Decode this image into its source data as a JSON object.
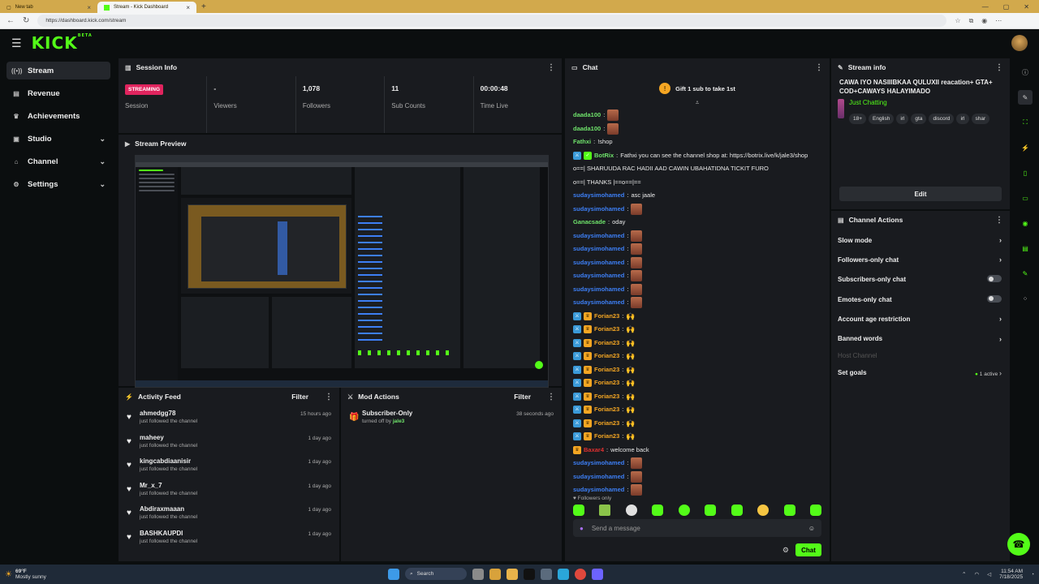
{
  "browser": {
    "tabs": [
      {
        "label": "New tab",
        "active": false
      },
      {
        "label": "Stream - Kick Dashboard",
        "active": true
      }
    ],
    "url": "https://dashboard.kick.com/stream"
  },
  "brand": {
    "logo": "KICK",
    "beta": "BETA",
    "accent": "#53fc18"
  },
  "sidebar": {
    "items": [
      {
        "label": "Stream",
        "icon": "broadcast-icon",
        "active": true
      },
      {
        "label": "Revenue",
        "icon": "wallet-icon"
      },
      {
        "label": "Achievements",
        "icon": "trophy-icon"
      },
      {
        "label": "Studio",
        "icon": "camera-icon",
        "expandable": true
      },
      {
        "label": "Channel",
        "icon": "home-icon",
        "expandable": true
      },
      {
        "label": "Settings",
        "icon": "gear-icon",
        "expandable": true
      }
    ]
  },
  "session": {
    "title": "Session Info",
    "stats": [
      {
        "value": "STREAMING",
        "label": "Session"
      },
      {
        "value": "-",
        "label": "Viewers"
      },
      {
        "value": "1,078",
        "label": "Followers"
      },
      {
        "value": "11",
        "label": "Sub Counts"
      },
      {
        "value": "00:00:48",
        "label": "Time Live"
      }
    ]
  },
  "preview": {
    "title": "Stream Preview"
  },
  "activity": {
    "title": "Activity Feed",
    "filter": "Filter",
    "items": [
      {
        "name": "ahmedgg78",
        "action": "just followed the channel",
        "time": "15 hours ago"
      },
      {
        "name": "maheey",
        "action": "just followed the channel",
        "time": "1 day ago"
      },
      {
        "name": "kingcabdiaanisir",
        "action": "just followed the channel",
        "time": "1 day ago"
      },
      {
        "name": "Mr_x_7",
        "action": "just followed the channel",
        "time": "1 day ago"
      },
      {
        "name": "Abdiraxmaaan",
        "action": "just followed the channel",
        "time": "1 day ago"
      },
      {
        "name": "BASHKAUPDI",
        "action": "just followed the channel",
        "time": "1 day ago"
      }
    ]
  },
  "mod": {
    "title": "Mod Actions",
    "filter": "Filter",
    "action": "Subscriber-Only",
    "detail_prefix": "turned off by",
    "by": "jale3",
    "time": "38 seconds ago"
  },
  "chat": {
    "title": "Chat",
    "gift": "Gift 1 sub to take 1st",
    "messages": [
      {
        "user": "daada100",
        "color": "green",
        "text": "",
        "emote": true
      },
      {
        "user": "daada100",
        "color": "green",
        "text": "",
        "emote": true
      },
      {
        "user": "Fathxi",
        "color": "green",
        "text": "!shop"
      },
      {
        "user": "BotRix",
        "color": "green",
        "text": "Fathxi you can see the channel shop at: https://botrix.live/k/jale3/shop",
        "badges": true
      },
      {
        "user": "",
        "color": "",
        "text": "o==| SHARUUDA RAC HADII AAD CAWIN UBAHATIDNA TICKIT FURO"
      },
      {
        "user": "",
        "color": "",
        "text": "o==| THANKS |==o==|=="
      },
      {
        "user": "sudaysimohamed",
        "color": "blue",
        "text": "asc jaale"
      },
      {
        "user": "sudaysimohamed",
        "color": "blue",
        "text": "",
        "emote": true
      },
      {
        "user": "Ganacsade",
        "color": "green",
        "text": "oday"
      },
      {
        "user": "sudaysimohamed",
        "color": "blue",
        "text": "",
        "emote": true
      },
      {
        "user": "sudaysimohamed",
        "color": "blue",
        "text": "",
        "emote": true
      },
      {
        "user": "sudaysimohamed",
        "color": "blue",
        "text": "",
        "emote": true
      },
      {
        "user": "sudaysimohamed",
        "color": "blue",
        "text": "",
        "emote": true
      },
      {
        "user": "sudaysimohamed",
        "color": "blue",
        "text": "",
        "emote": true
      },
      {
        "user": "sudaysimohamed",
        "color": "blue",
        "text": "",
        "emote": true
      },
      {
        "user": "Forian23",
        "color": "orange",
        "text": "",
        "hands": true,
        "badges": true
      },
      {
        "user": "Forian23",
        "color": "orange",
        "text": "",
        "hands": true,
        "badges": true
      },
      {
        "user": "Forian23",
        "color": "orange",
        "text": "",
        "hands": true,
        "badges": true
      },
      {
        "user": "Forian23",
        "color": "orange",
        "text": "",
        "hands": true,
        "badges": true
      },
      {
        "user": "Forian23",
        "color": "orange",
        "text": "",
        "hands": true,
        "badges": true
      },
      {
        "user": "Forian23",
        "color": "orange",
        "text": "",
        "hands": true,
        "badges": true
      },
      {
        "user": "Forian23",
        "color": "orange",
        "text": "",
        "hands": true,
        "badges": true
      },
      {
        "user": "Forian23",
        "color": "orange",
        "text": "",
        "hands": true,
        "badges": true
      },
      {
        "user": "Forian23",
        "color": "orange",
        "text": "",
        "hands": true,
        "badges": true
      },
      {
        "user": "Forian23",
        "color": "orange",
        "text": "",
        "hands": true,
        "badges": true
      },
      {
        "user": "Baxar4",
        "color": "red",
        "text": "welcome back",
        "crown": true
      },
      {
        "user": "sudaysimohamed",
        "color": "blue",
        "text": "",
        "emote": true
      },
      {
        "user": "sudaysimohamed",
        "color": "blue",
        "text": "",
        "emote": true
      },
      {
        "user": "sudaysimohamed",
        "color": "blue",
        "text": "",
        "emote": true
      }
    ],
    "mode": "Followers only",
    "placeholder": "Send a message",
    "send": "Chat"
  },
  "stream_info": {
    "title": "Stream info",
    "stream_title": "CAWA IYO NASIIIBKAA QULUXII reacation+ GTA+ COD+CAWAYS HALAYIMADO",
    "category": "Just Chatting",
    "tags": [
      "18+",
      "English",
      "irl",
      "gta",
      "discord",
      "irl",
      "shar"
    ],
    "edit": "Edit"
  },
  "channel_actions": {
    "title": "Channel Actions",
    "items": [
      {
        "label": "Slow mode",
        "control": "chevron"
      },
      {
        "label": "Followers-only chat",
        "control": "chevron"
      },
      {
        "label": "Subscribers-only chat",
        "control": "toggle"
      },
      {
        "label": "Emotes-only chat",
        "control": "toggle"
      },
      {
        "label": "Account age restriction",
        "control": "chevron"
      },
      {
        "label": "Banned words",
        "control": "chevron"
      },
      {
        "label": "Host Channel",
        "control": "none",
        "disabled": true
      },
      {
        "label": "Set goals",
        "control": "chevron",
        "status": "1 active"
      }
    ]
  },
  "taskbar": {
    "weather_temp": "69°F",
    "weather_desc": "Mostly sunny",
    "search": "Search",
    "time": "11:54 AM",
    "date": "7/18/2025"
  }
}
